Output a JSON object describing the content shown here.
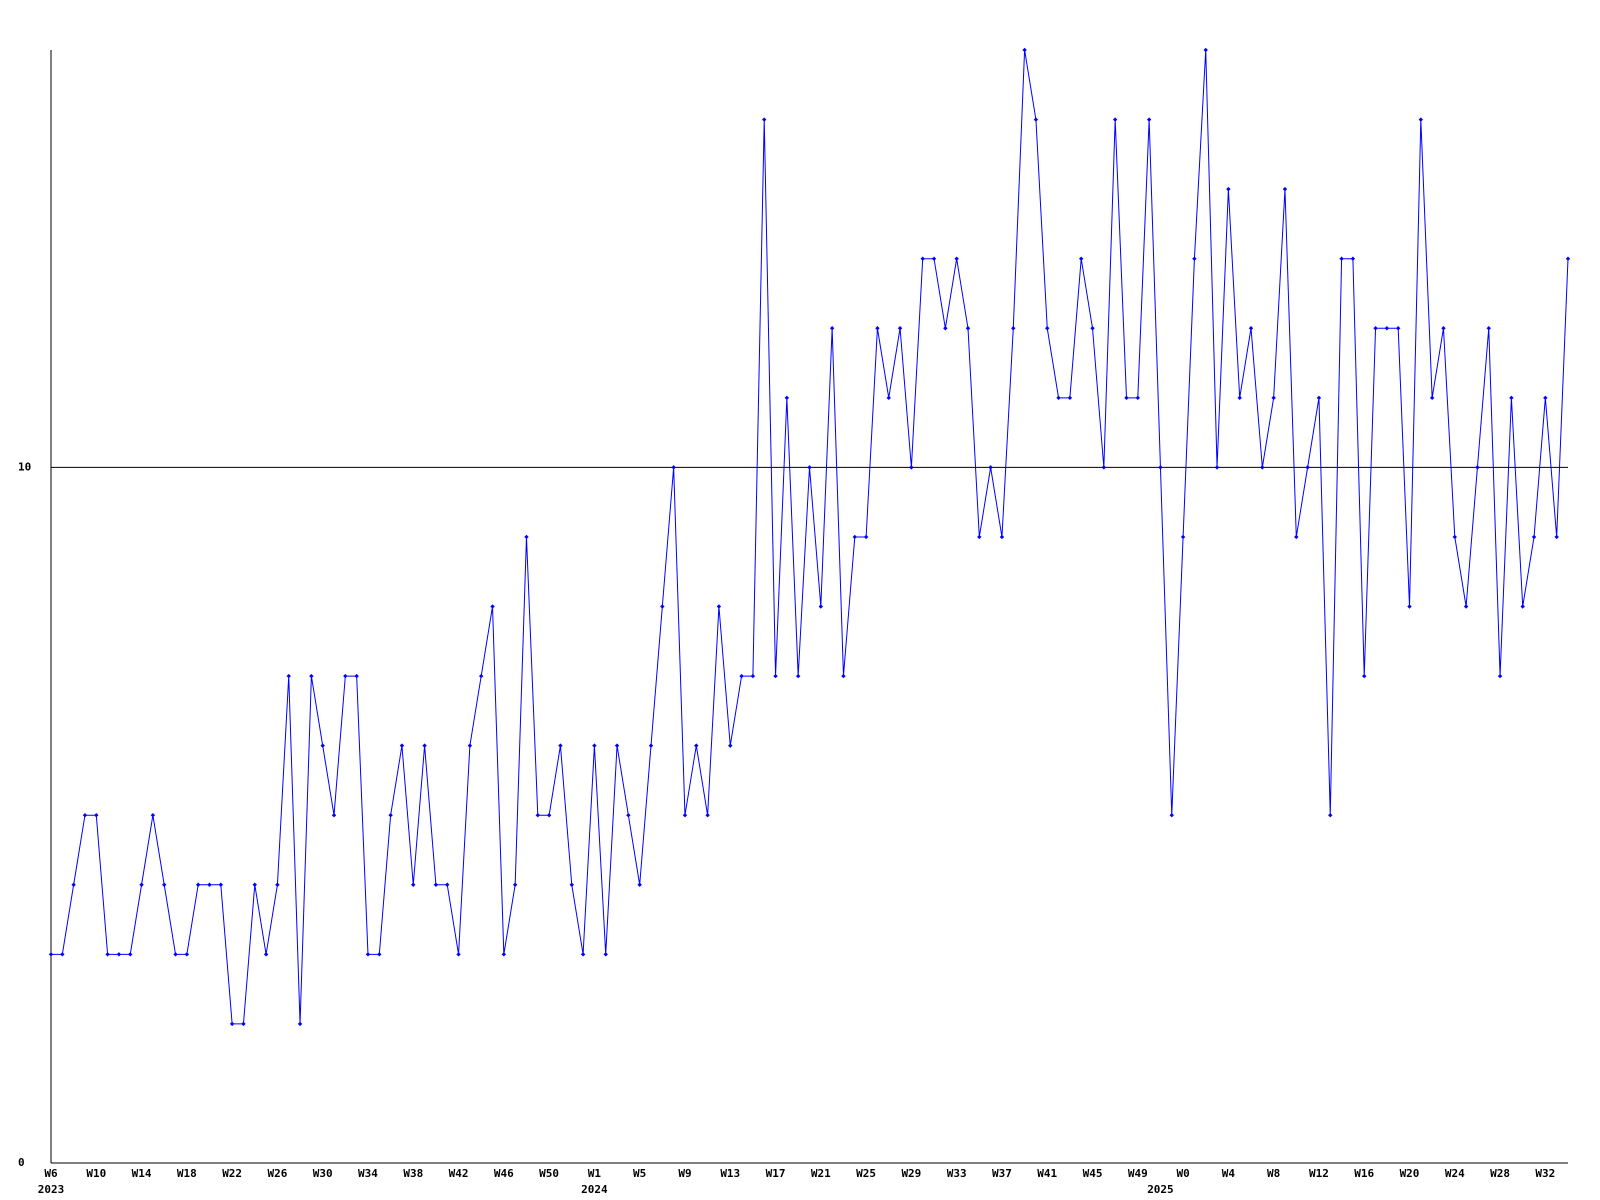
{
  "chart_data": {
    "type": "line",
    "categories": [
      "W6",
      null,
      null,
      null,
      "W10",
      null,
      null,
      null,
      "W14",
      null,
      null,
      null,
      "W18",
      null,
      null,
      null,
      "W22",
      null,
      null,
      null,
      "W26",
      null,
      null,
      null,
      "W30",
      null,
      null,
      null,
      "W34",
      null,
      null,
      null,
      "W38",
      null,
      null,
      null,
      "W42",
      null,
      null,
      null,
      "W46",
      null,
      null,
      null,
      "W50",
      null,
      null,
      null,
      "W1",
      null,
      null,
      null,
      "W5",
      null,
      null,
      null,
      "W9",
      null,
      null,
      null,
      "W13",
      null,
      null,
      null,
      "W17",
      null,
      null,
      null,
      "W21",
      null,
      null,
      null,
      "W25",
      null,
      null,
      null,
      "W29",
      null,
      null,
      null,
      "W33",
      null,
      null,
      null,
      "W37",
      null,
      null,
      null,
      "W41",
      null,
      null,
      null,
      "W45",
      null,
      null,
      null,
      "W49",
      null,
      null,
      null,
      "W0",
      null,
      null,
      null,
      "W4",
      null,
      null,
      null,
      "W8",
      null,
      null,
      null,
      "W12",
      null,
      null,
      null,
      "W16",
      null,
      null,
      null,
      "W20",
      null,
      null,
      null,
      "W24",
      null,
      null,
      null,
      "W28",
      null,
      null,
      null,
      "W32",
      null,
      null
    ],
    "years": [
      "2023",
      null,
      null,
      null,
      null,
      null,
      null,
      null,
      null,
      null,
      null,
      null,
      null,
      null,
      null,
      null,
      null,
      null,
      null,
      null,
      null,
      null,
      null,
      null,
      null,
      null,
      null,
      null,
      null,
      null,
      null,
      null,
      null,
      null,
      null,
      null,
      null,
      null,
      null,
      null,
      null,
      null,
      null,
      null,
      null,
      null,
      null,
      null,
      "2024",
      null,
      null,
      null,
      null,
      null,
      null,
      null,
      null,
      null,
      null,
      null,
      null,
      null,
      null,
      null,
      null,
      null,
      null,
      null,
      null,
      null,
      null,
      null,
      null,
      null,
      null,
      null,
      null,
      null,
      null,
      null,
      null,
      null,
      null,
      null,
      null,
      null,
      null,
      null,
      null,
      null,
      null,
      null,
      null,
      null,
      null,
      null,
      null,
      null,
      "2025",
      null,
      null,
      null,
      null,
      null,
      null,
      null,
      null,
      null,
      null,
      null,
      null,
      null,
      null,
      null,
      null,
      null,
      null,
      null,
      null,
      null,
      null,
      null,
      null,
      null,
      null,
      null,
      null,
      null,
      null,
      null,
      null,
      null,
      null
    ],
    "series": [
      {
        "color": "#0000ff",
        "values": [
          3,
          3,
          4,
          5,
          5,
          3,
          3,
          3,
          4,
          5,
          4,
          3,
          3,
          4,
          4,
          4,
          2,
          2,
          4,
          3,
          4,
          7,
          2,
          7,
          6,
          5,
          7,
          7,
          3,
          3,
          5,
          6,
          4,
          6,
          4,
          4,
          3,
          6,
          7,
          8,
          3,
          4,
          9,
          5,
          5,
          6,
          4,
          3,
          6,
          3,
          6,
          5,
          4,
          6,
          8,
          10,
          5,
          6,
          5,
          8,
          6,
          7,
          7,
          15,
          7,
          11,
          7,
          10,
          8,
          12,
          7,
          9,
          9,
          12,
          11,
          12,
          10,
          13,
          13,
          12,
          13,
          12,
          9,
          10,
          9,
          12,
          16,
          15,
          12,
          11,
          11,
          13,
          12,
          10,
          15,
          11,
          11,
          15,
          10,
          5,
          9,
          13,
          16,
          10,
          14,
          11,
          12,
          10,
          11,
          14,
          9,
          10,
          11,
          5,
          13,
          13,
          7,
          12,
          12,
          12,
          8,
          15,
          11,
          12,
          9,
          8,
          10,
          12,
          7,
          11,
          8,
          9,
          11,
          9,
          13
        ]
      }
    ],
    "ylim": [
      0,
      16
    ],
    "yticks": [
      0,
      10
    ],
    "grid": true
  }
}
